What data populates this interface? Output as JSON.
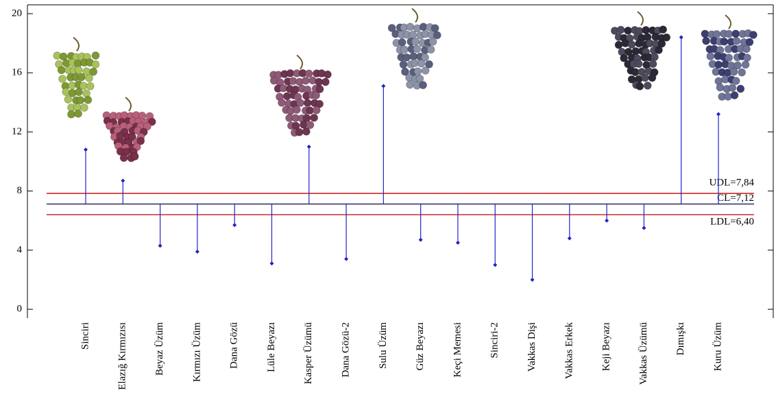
{
  "chart_data": {
    "type": "anom",
    "categories": [
      "Sinciri",
      "Elazığ Kırmızısı",
      "Beyaz Üzüm",
      "Kırmızı Üzüm",
      "Dana Gözü",
      "Lüle Beyazı",
      "Kasper Üzümü",
      "Dana Gözü-2",
      "Sulu Üzüm",
      "Güz Beyazı",
      "Keçi Memesi",
      "Sinciri-2",
      "Vakkas Dişi",
      "Vakkas Erkek",
      "Keji Beyazı",
      "Vakkas Üzümü",
      "Dımışkı",
      "Kuru Üzüm"
    ],
    "values": [
      10.8,
      8.7,
      4.3,
      3.9,
      5.7,
      3.1,
      11.0,
      3.4,
      15.1,
      4.7,
      4.5,
      3.0,
      2.0,
      4.8,
      6.0,
      5.5,
      18.4,
      13.2
    ],
    "color": "#2222c8",
    "control_lines": [
      {
        "value": 7.84,
        "label": "UDL=7,84",
        "color": "#c00000"
      },
      {
        "value": 7.12,
        "label": "CL=7,12",
        "color": "#1a1a50"
      },
      {
        "value": 6.4,
        "label": "LDL=6,40",
        "color": "#c00000"
      }
    ],
    "ylim": [
      -0.6,
      20.6
    ],
    "yticks": [
      0,
      4,
      8,
      12,
      16,
      20
    ]
  }
}
